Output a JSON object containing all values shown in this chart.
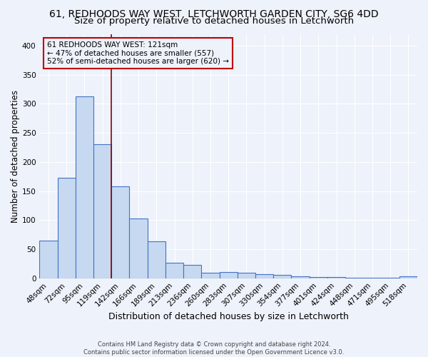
{
  "title1": "61, REDHOODS WAY WEST, LETCHWORTH GARDEN CITY, SG6 4DD",
  "title2": "Size of property relative to detached houses in Letchworth",
  "xlabel": "Distribution of detached houses by size in Letchworth",
  "ylabel": "Number of detached properties",
  "footer1": "Contains HM Land Registry data © Crown copyright and database right 2024.",
  "footer2": "Contains public sector information licensed under the Open Government Licence v3.0.",
  "categories": [
    "48sqm",
    "72sqm",
    "95sqm",
    "119sqm",
    "142sqm",
    "166sqm",
    "189sqm",
    "213sqm",
    "236sqm",
    "260sqm",
    "283sqm",
    "307sqm",
    "330sqm",
    "354sqm",
    "377sqm",
    "401sqm",
    "424sqm",
    "448sqm",
    "471sqm",
    "495sqm",
    "518sqm"
  ],
  "values": [
    65,
    173,
    313,
    230,
    158,
    103,
    63,
    27,
    23,
    10,
    11,
    10,
    7,
    6,
    3,
    2,
    2,
    1,
    1,
    1,
    3
  ],
  "bar_color": "#c6d9f0",
  "bar_edge_color": "#4472c4",
  "vline_x_index": 3,
  "vline_color": "#8B0000",
  "annotation_line1": "61 REDHOODS WAY WEST: 121sqm",
  "annotation_line2": "← 47% of detached houses are smaller (557)",
  "annotation_line3": "52% of semi-detached houses are larger (620) →",
  "annotation_box_edge": "#c00000",
  "annotation_box_face": "#eef2fa",
  "ylim": [
    0,
    420
  ],
  "yticks": [
    0,
    50,
    100,
    150,
    200,
    250,
    300,
    350,
    400
  ],
  "bg_color": "#eef2fa",
  "grid_color": "#ffffff",
  "title1_fontsize": 10,
  "title2_fontsize": 9.5,
  "xlabel_fontsize": 9,
  "ylabel_fontsize": 8.5,
  "tick_fontsize": 7.5,
  "annotation_fontsize": 7.5
}
